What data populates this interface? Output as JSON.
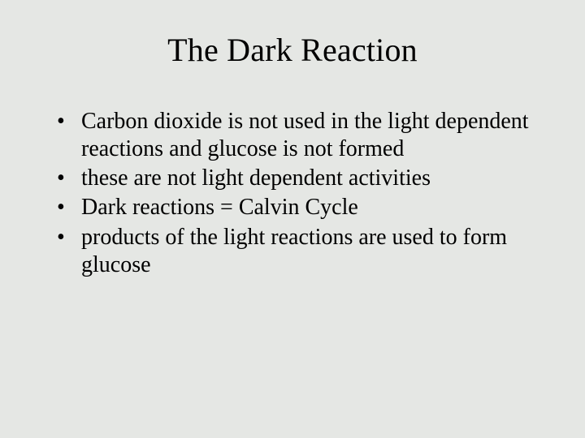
{
  "background_color": "#e5e7e4",
  "text_color": "#000000",
  "font_family": "Times New Roman",
  "title": {
    "text": "The Dark Reaction",
    "fontsize": 40
  },
  "bullets": {
    "fontsize": 28,
    "items": [
      "Carbon dioxide is not used in the light dependent reactions and glucose is not formed",
      "these are  not light dependent activities",
      "Dark reactions = Calvin Cycle",
      "products of the light reactions are used to form glucose"
    ]
  }
}
